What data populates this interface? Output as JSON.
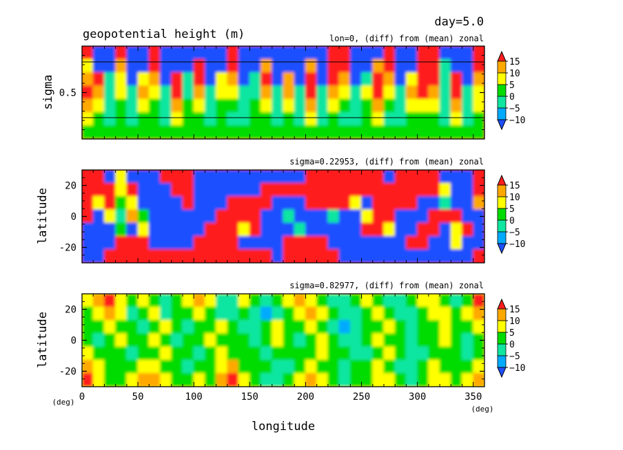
{
  "header": {
    "day_label": "day=5.0",
    "title": "geopotential height (m)"
  },
  "colors": {
    "levels": [
      "#1e50ff",
      "#00aaff",
      "#10e6a0",
      "#00dc00",
      "#ffff00",
      "#ffa800",
      "#ff1e1e"
    ],
    "line": "#000000"
  },
  "chart_data": [
    {
      "type": "heatmap",
      "subtitle": "lon=0, (diff) from (mean) zonal",
      "ylabel": "sigma",
      "yticks": [
        0.5
      ],
      "ylim": [
        1.0,
        0.0
      ],
      "xlim": [
        0,
        360
      ],
      "hlines": [
        0.23,
        0.83
      ],
      "xlabel": "",
      "colorbar": {
        "levels": [
          -10,
          -5,
          0,
          5,
          10,
          15
        ],
        "labels": [
          "15",
          "10",
          "5",
          "0",
          "−5",
          "−10"
        ]
      },
      "grid_cols": 36,
      "grid_rows": 7,
      "values": [
        [
          15,
          -12,
          -12,
          15,
          -12,
          -12,
          15,
          -12,
          -12,
          -12,
          -12,
          -12,
          -12,
          15,
          -12,
          -12,
          -12,
          -12,
          -12,
          -12,
          -12,
          -12,
          15,
          15,
          -12,
          -12,
          -12,
          15,
          -12,
          -12,
          15,
          15,
          -12,
          -12,
          -12,
          15
        ],
        [
          5,
          -12,
          -12,
          10,
          -12,
          -12,
          15,
          -12,
          -12,
          -12,
          15,
          -12,
          -12,
          15,
          -12,
          -12,
          10,
          -12,
          -12,
          -12,
          10,
          -12,
          15,
          15,
          -12,
          -12,
          10,
          15,
          -12,
          -12,
          15,
          15,
          -5,
          -12,
          -12,
          15
        ],
        [
          10,
          15,
          -5,
          5,
          -12,
          5,
          10,
          -12,
          15,
          -5,
          15,
          -12,
          5,
          10,
          -12,
          -5,
          15,
          -12,
          10,
          -12,
          15,
          -12,
          15,
          10,
          -12,
          -5,
          15,
          10,
          -12,
          5,
          15,
          15,
          -5,
          15,
          -12,
          10
        ],
        [
          15,
          10,
          -5,
          5,
          -5,
          10,
          5,
          -5,
          15,
          -5,
          10,
          -5,
          5,
          5,
          -5,
          -5,
          10,
          -5,
          10,
          -5,
          15,
          -5,
          10,
          5,
          -5,
          5,
          15,
          5,
          -5,
          10,
          15,
          10,
          -5,
          15,
          -5,
          5
        ],
        [
          10,
          5,
          -5,
          0,
          -5,
          5,
          0,
          -5,
          10,
          0,
          5,
          -5,
          0,
          0,
          -5,
          0,
          5,
          -5,
          5,
          -5,
          10,
          -5,
          5,
          0,
          -5,
          0,
          10,
          0,
          -5,
          5,
          5,
          5,
          -5,
          10,
          -5,
          5
        ],
        [
          5,
          0,
          -5,
          0,
          -5,
          0,
          0,
          -5,
          5,
          0,
          0,
          -5,
          0,
          -5,
          -5,
          0,
          0,
          -5,
          0,
          -5,
          5,
          -5,
          0,
          -5,
          -5,
          0,
          5,
          -5,
          -5,
          0,
          0,
          0,
          -5,
          5,
          -5,
          0
        ],
        [
          0,
          0,
          0,
          0,
          0,
          0,
          0,
          0,
          0,
          0,
          0,
          0,
          0,
          0,
          0,
          0,
          0,
          0,
          0,
          0,
          0,
          0,
          0,
          0,
          0,
          0,
          0,
          0,
          0,
          0,
          0,
          0,
          0,
          0,
          0,
          0
        ]
      ]
    },
    {
      "type": "heatmap",
      "subtitle": "sigma=0.22953, (diff) from (mean) zonal",
      "ylabel": "latitude",
      "yticks": [
        20,
        0,
        -20
      ],
      "ylim": [
        30,
        -30
      ],
      "xlim": [
        0,
        360
      ],
      "hlines": [],
      "xlabel": "",
      "colorbar": {
        "levels": [
          -10,
          -5,
          0,
          5,
          10,
          15
        ],
        "labels": [
          "15",
          "10",
          "5",
          "0",
          "−5",
          "−10"
        ]
      },
      "grid_cols": 36,
      "grid_rows": 7,
      "values": [
        [
          15,
          15,
          -12,
          5,
          -12,
          -12,
          -12,
          15,
          15,
          15,
          -12,
          -12,
          -12,
          -12,
          -12,
          -12,
          -12,
          -12,
          -12,
          -12,
          15,
          15,
          15,
          15,
          15,
          15,
          15,
          -12,
          15,
          15,
          15,
          15,
          -12,
          -12,
          -12,
          15
        ],
        [
          15,
          15,
          15,
          5,
          15,
          -12,
          -12,
          -12,
          15,
          15,
          -12,
          -12,
          -12,
          -12,
          -12,
          -12,
          15,
          15,
          15,
          15,
          15,
          15,
          15,
          15,
          15,
          15,
          15,
          15,
          15,
          15,
          15,
          15,
          5,
          -12,
          -12,
          15
        ],
        [
          15,
          5,
          15,
          0,
          5,
          -12,
          -12,
          -12,
          -12,
          15,
          -12,
          -12,
          -12,
          15,
          15,
          15,
          15,
          -12,
          -12,
          -12,
          15,
          15,
          15,
          15,
          5,
          -12,
          15,
          15,
          15,
          15,
          -12,
          -12,
          -5,
          -12,
          -12,
          10
        ],
        [
          15,
          -12,
          5,
          -5,
          10,
          0,
          -12,
          -12,
          -12,
          -12,
          -12,
          -12,
          15,
          15,
          15,
          15,
          -12,
          -12,
          -5,
          -12,
          -12,
          -12,
          -5,
          -12,
          -12,
          5,
          15,
          15,
          -12,
          -12,
          -12,
          15,
          15,
          15,
          -12,
          -12
        ],
        [
          -12,
          -12,
          -12,
          0,
          -12,
          5,
          -12,
          -12,
          -12,
          -12,
          -12,
          15,
          15,
          15,
          5,
          15,
          -12,
          -12,
          -12,
          -5,
          -12,
          -12,
          -12,
          -12,
          -12,
          15,
          15,
          5,
          -12,
          -12,
          15,
          15,
          -12,
          5,
          15,
          -12
        ],
        [
          -12,
          -12,
          -12,
          15,
          15,
          15,
          -12,
          -12,
          -12,
          -12,
          15,
          15,
          15,
          15,
          -12,
          -12,
          -12,
          -12,
          15,
          15,
          15,
          15,
          -12,
          -12,
          -12,
          -12,
          -12,
          -12,
          -12,
          15,
          15,
          -12,
          -12,
          5,
          -12,
          -12
        ],
        [
          -12,
          -12,
          15,
          15,
          15,
          15,
          15,
          15,
          15,
          15,
          15,
          15,
          15,
          15,
          15,
          15,
          15,
          -12,
          15,
          15,
          15,
          15,
          15,
          -12,
          -12,
          -12,
          -12,
          -12,
          -12,
          -12,
          -12,
          -12,
          -12,
          -12,
          -12,
          15
        ]
      ]
    },
    {
      "type": "heatmap",
      "subtitle": "sigma=0.82977, (diff) from (mean) zonal",
      "ylabel": "latitude",
      "yticks": [
        20,
        0,
        -20
      ],
      "ylim": [
        30,
        -30
      ],
      "xlim": [
        0,
        360
      ],
      "hlines": [],
      "xlabel": "longitude",
      "xticks": [
        0,
        50,
        100,
        150,
        200,
        250,
        300,
        350
      ],
      "xunit": "(deg)",
      "colorbar": {
        "levels": [
          -10,
          -5,
          0,
          5,
          10,
          15
        ],
        "labels": [
          "15",
          "10",
          "5",
          "0",
          "−5",
          "−10"
        ]
      },
      "grid_cols": 36,
      "grid_rows": 7,
      "values": [
        [
          5,
          10,
          15,
          5,
          0,
          5,
          0,
          -5,
          0,
          5,
          10,
          5,
          -5,
          -5,
          5,
          0,
          -5,
          0,
          5,
          10,
          5,
          0,
          -5,
          -5,
          0,
          5,
          0,
          -5,
          -5,
          0,
          5,
          5,
          0,
          -5,
          0,
          15
        ],
        [
          0,
          5,
          10,
          5,
          -5,
          0,
          5,
          -5,
          0,
          0,
          5,
          0,
          -5,
          -5,
          0,
          -5,
          -10,
          -5,
          0,
          5,
          10,
          5,
          0,
          -5,
          -5,
          0,
          5,
          0,
          -5,
          -5,
          0,
          5,
          5,
          0,
          5,
          10
        ],
        [
          0,
          0,
          5,
          0,
          0,
          -5,
          0,
          5,
          0,
          -5,
          0,
          0,
          5,
          0,
          -5,
          -5,
          0,
          5,
          0,
          0,
          5,
          0,
          -5,
          -10,
          -5,
          0,
          0,
          5,
          0,
          -5,
          0,
          0,
          5,
          0,
          0,
          5
        ],
        [
          0,
          -5,
          0,
          5,
          0,
          0,
          5,
          0,
          -5,
          0,
          0,
          5,
          0,
          0,
          0,
          -5,
          0,
          5,
          0,
          -5,
          0,
          5,
          0,
          -5,
          -5,
          0,
          5,
          0,
          0,
          -5,
          0,
          0,
          5,
          0,
          -5,
          0
        ],
        [
          5,
          0,
          0,
          0,
          -5,
          0,
          0,
          5,
          0,
          0,
          -5,
          0,
          5,
          0,
          0,
          0,
          -5,
          0,
          0,
          0,
          0,
          5,
          0,
          0,
          -5,
          -5,
          0,
          5,
          0,
          -5,
          -5,
          0,
          0,
          0,
          -5,
          0
        ],
        [
          10,
          5,
          0,
          0,
          0,
          5,
          5,
          0,
          0,
          -5,
          0,
          0,
          5,
          10,
          0,
          0,
          0,
          -5,
          -5,
          0,
          5,
          0,
          0,
          -5,
          0,
          0,
          5,
          0,
          -5,
          -5,
          0,
          5,
          0,
          0,
          0,
          5
        ],
        [
          15,
          5,
          0,
          0,
          5,
          10,
          10,
          5,
          0,
          0,
          5,
          0,
          10,
          15,
          5,
          0,
          -5,
          -5,
          0,
          5,
          10,
          5,
          0,
          -5,
          0,
          0,
          5,
          5,
          0,
          -5,
          0,
          5,
          5,
          0,
          5,
          10
        ]
      ]
    }
  ]
}
